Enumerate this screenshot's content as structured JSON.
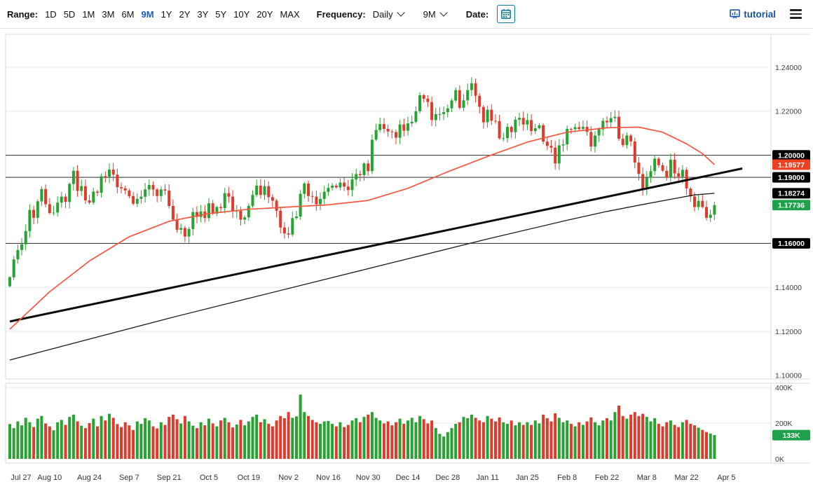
{
  "toolbar": {
    "range_label": "Range:",
    "ranges": [
      "1D",
      "5D",
      "1M",
      "3M",
      "6M",
      "9M",
      "1Y",
      "2Y",
      "3Y",
      "5Y",
      "10Y",
      "20Y",
      "MAX"
    ],
    "active_range": "9M",
    "frequency_label": "Frequency:",
    "frequency_value": "Daily",
    "period_value": "9M",
    "date_label": "Date:",
    "tutorial_label": "tutorial"
  },
  "icons": {
    "date_picker": "calendar-icon",
    "frequency_dropdown": "caret-down-icon",
    "period_dropdown": "caret-down-icon",
    "tutorial": "presentation-board-icon",
    "menu": "hamburger-menu-icon"
  },
  "colors": {
    "accent_blue": "#135ec2",
    "link_blue": "#17549f",
    "teal": "#0c7b93",
    "up": "#27a331",
    "down": "#df3b2c",
    "badge_black": "#000000",
    "badge_red": "#ee4023",
    "badge_green": "#1fa14c",
    "ma_red": "#f4573f",
    "ma_slow": "#1a1a1a",
    "trend": "#0d0d0d",
    "grid": "#e9e9e9",
    "frame": "#d9d9d9",
    "hline": "#2b2b2b"
  },
  "chart_data": {
    "type": "candlestick",
    "frequency": "Daily",
    "range": "9M",
    "x_tick_labels": [
      "Jul 27",
      "Aug 10",
      "Aug 24",
      "Sep 7",
      "Sep 21",
      "Oct 5",
      "Oct 19",
      "Nov 2",
      "Nov 16",
      "Nov 30",
      "Dec 14",
      "Dec 28",
      "Jan 11",
      "Jan 25",
      "Feb 8",
      "Feb 22",
      "Mar 8",
      "Mar 22",
      "Apr 5"
    ],
    "x_tick_indices": [
      0,
      10,
      20,
      30,
      40,
      50,
      60,
      70,
      80,
      90,
      100,
      110,
      120,
      130,
      140,
      150,
      160,
      170,
      180
    ],
    "ylim": [
      1.098,
      1.2555
    ],
    "y_ticks": [
      {
        "label": "1.24000",
        "value": 1.24
      },
      {
        "label": "1.22000",
        "value": 1.22
      },
      {
        "label": "1.14000",
        "value": 1.14
      },
      {
        "label": "1.12000",
        "value": 1.12
      },
      {
        "label": "1.10000",
        "value": 1.1
      }
    ],
    "grid_prices": [
      1.24,
      1.22,
      1.14,
      1.12
    ],
    "price_lines": [
      1.2,
      1.19,
      1.16
    ],
    "axis_badges": [
      {
        "label": "1.20000",
        "value": 1.2,
        "type": "black"
      },
      {
        "label": "1.19577",
        "value": 1.19577,
        "type": "red"
      },
      {
        "label": "1.19000",
        "value": 1.19,
        "type": "black"
      },
      {
        "label": "1.18274",
        "value": 1.18274,
        "type": "black"
      },
      {
        "label": "1.17736",
        "value": 1.17736,
        "type": "green"
      },
      {
        "label": "1.16000",
        "value": 1.16,
        "type": "black"
      }
    ],
    "current_close": 1.17736,
    "first_open": 1.1405,
    "closes": [
      1.1446,
      1.1527,
      1.157,
      1.1596,
      1.1656,
      1.1752,
      1.1716,
      1.1791,
      1.1847,
      1.1778,
      1.1738,
      1.174,
      1.1785,
      1.1812,
      1.1788,
      1.187,
      1.193,
      1.1838,
      1.186,
      1.1795,
      1.1785,
      1.1835,
      1.183,
      1.1905,
      1.1903,
      1.1935,
      1.1912,
      1.1855,
      1.185,
      1.184,
      1.1815,
      1.178,
      1.1802,
      1.1812,
      1.1845,
      1.1865,
      1.1845,
      1.1815,
      1.1845,
      1.184,
      1.177,
      1.1708,
      1.1662,
      1.167,
      1.1631,
      1.1665,
      1.1742,
      1.172,
      1.1745,
      1.1715,
      1.1782,
      1.1735,
      1.1765,
      1.176,
      1.1828,
      1.1812,
      1.1745,
      1.1748,
      1.1708,
      1.1718,
      1.177,
      1.182,
      1.1862,
      1.182,
      1.186,
      1.181,
      1.1794,
      1.1748,
      1.1672,
      1.1645,
      1.164,
      1.1715,
      1.1722,
      1.1825,
      1.1872,
      1.1815,
      1.1812,
      1.1778,
      1.1802,
      1.1834,
      1.1852,
      1.1862,
      1.1854,
      1.1876,
      1.1858,
      1.1842,
      1.189,
      1.1915,
      1.191,
      1.1963,
      1.1928,
      1.2071,
      1.2115,
      1.2142,
      1.212,
      1.2108,
      1.2105,
      1.208,
      1.214,
      1.2112,
      1.2145,
      1.2152,
      1.22,
      1.2273,
      1.2257,
      1.2242,
      1.216,
      1.2187,
      1.2187,
      1.2196,
      1.2213,
      1.2249,
      1.2296,
      1.2216,
      1.225,
      1.2296,
      1.2327,
      1.227,
      1.222,
      1.215,
      1.2207,
      1.2157,
      1.2155,
      1.2077,
      1.2078,
      1.2129,
      1.2105,
      1.2162,
      1.217,
      1.214,
      1.216,
      1.211,
      1.2123,
      1.2136,
      1.2062,
      1.2043,
      1.2035,
      1.1963,
      1.2045,
      1.205,
      1.212,
      1.2119,
      1.2128,
      1.212,
      1.2129,
      1.2106,
      1.204,
      1.209,
      1.2118,
      1.2157,
      1.215,
      1.2169,
      1.2175,
      1.2075,
      1.2046,
      1.209,
      1.2063,
      1.1967,
      1.1915,
      1.1847,
      1.1899,
      1.1928,
      1.1985,
      1.1955,
      1.193,
      1.1899,
      1.198,
      1.1918,
      1.1903,
      1.1934,
      1.1849,
      1.1813,
      1.1765,
      1.1793,
      1.1765,
      1.1716,
      1.173,
      1.17736
    ],
    "volumes_k": [
      195,
      172,
      210,
      188,
      230,
      205,
      178,
      225,
      240,
      198,
      182,
      160,
      205,
      218,
      190,
      235,
      248,
      210,
      186,
      172,
      200,
      225,
      182,
      240,
      215,
      252,
      230,
      195,
      178,
      205,
      188,
      162,
      210,
      196,
      228,
      215,
      182,
      170,
      205,
      190,
      235,
      248,
      222,
      198,
      240,
      210,
      186,
      172,
      205,
      188,
      225,
      198,
      182,
      215,
      230,
      205,
      176,
      192,
      218,
      188,
      210,
      235,
      248,
      205,
      222,
      196,
      182,
      215,
      240,
      228,
      262,
      230,
      238,
      360,
      262,
      240,
      218,
      205,
      196,
      210,
      212,
      196,
      182,
      205,
      178,
      190,
      215,
      228,
      205,
      235,
      248,
      262,
      230,
      215,
      198,
      210,
      188,
      205,
      225,
      196,
      215,
      230,
      205,
      240,
      222,
      198,
      215,
      172,
      140,
      125,
      150,
      172,
      196,
      205,
      235,
      228,
      248,
      230,
      215,
      205,
      240,
      225,
      210,
      232,
      205,
      196,
      215,
      188,
      205,
      190,
      205,
      190,
      215,
      198,
      248,
      228,
      210,
      255,
      230,
      205,
      215,
      196,
      182,
      205,
      190,
      210,
      232,
      205,
      188,
      215,
      228,
      215,
      262,
      298,
      240,
      225,
      248,
      262,
      240,
      252,
      235,
      210,
      228,
      196,
      182,
      205,
      215,
      190,
      178,
      205,
      218,
      196,
      188,
      175,
      162,
      150,
      142,
      133
    ],
    "volume_ticks": [
      {
        "label": "400K",
        "value": 400
      },
      {
        "label": "200K",
        "value": 200
      },
      {
        "label": "0K",
        "value": 0
      }
    ],
    "volume_grid": [
      400,
      200
    ],
    "volume_badge": {
      "label": "133K",
      "value": 133
    },
    "overlays": {
      "ma_fast_red": {
        "name": "fast-moving-average",
        "color_key": "ma_red",
        "end_value": 1.19577,
        "points": [
          [
            0,
            1.121
          ],
          [
            10,
            1.138
          ],
          [
            20,
            1.152
          ],
          [
            30,
            1.163
          ],
          [
            40,
            1.17
          ],
          [
            50,
            1.1735
          ],
          [
            60,
            1.1755
          ],
          [
            70,
            1.1765
          ],
          [
            80,
            1.1775
          ],
          [
            90,
            1.1795
          ],
          [
            100,
            1.185
          ],
          [
            110,
            1.1925
          ],
          [
            120,
            1.1995
          ],
          [
            130,
            1.206
          ],
          [
            140,
            1.2105
          ],
          [
            150,
            1.2125
          ],
          [
            158,
            1.2128
          ],
          [
            164,
            1.2105
          ],
          [
            170,
            1.2052
          ],
          [
            174,
            1.2008
          ],
          [
            177,
            1.19577
          ]
        ]
      },
      "ma_slow_black": {
        "name": "slow-moving-average",
        "color_key": "ma_slow",
        "end_value": 1.18274,
        "points": [
          [
            0,
            1.107
          ],
          [
            20,
            1.1165
          ],
          [
            40,
            1.126
          ],
          [
            60,
            1.135
          ],
          [
            80,
            1.144
          ],
          [
            100,
            1.153
          ],
          [
            120,
            1.162
          ],
          [
            140,
            1.1705
          ],
          [
            150,
            1.1745
          ],
          [
            160,
            1.178
          ],
          [
            166,
            1.18
          ],
          [
            172,
            1.182
          ],
          [
            177,
            1.18274
          ]
        ]
      },
      "trendline": {
        "name": "trendline",
        "color_key": "trend",
        "points": [
          [
            0,
            1.1245
          ],
          [
            184,
            1.194
          ]
        ]
      }
    }
  }
}
